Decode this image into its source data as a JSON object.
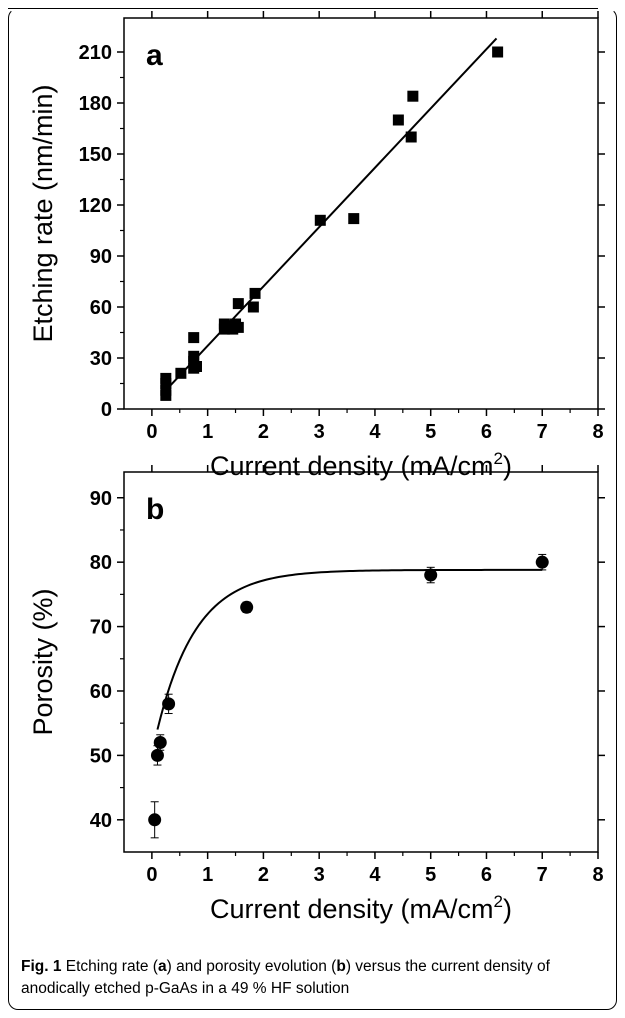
{
  "chart_data": [
    {
      "type": "scatter",
      "panel_label": "a",
      "xlabel": "Current density (mA/cm",
      "xlabel_sup": "2",
      "xlabel_close": ")",
      "ylabel": "Etching rate (nm/min)",
      "xlim": [
        -0.5,
        8
      ],
      "ylim": [
        0,
        230
      ],
      "xticks": [
        0,
        1,
        2,
        3,
        4,
        5,
        6,
        7,
        8
      ],
      "yticks": [
        0,
        30,
        60,
        90,
        120,
        150,
        180,
        210
      ],
      "marker": "square",
      "points": [
        [
          0.25,
          8
        ],
        [
          0.25,
          11
        ],
        [
          0.25,
          15
        ],
        [
          0.25,
          18
        ],
        [
          0.52,
          21
        ],
        [
          0.75,
          24
        ],
        [
          0.75,
          28
        ],
        [
          0.75,
          31
        ],
        [
          0.75,
          42
        ],
        [
          0.8,
          25
        ],
        [
          1.3,
          47
        ],
        [
          1.3,
          50
        ],
        [
          1.35,
          48
        ],
        [
          1.4,
          49
        ],
        [
          1.45,
          47
        ],
        [
          1.5,
          50
        ],
        [
          1.55,
          48
        ],
        [
          1.55,
          62
        ],
        [
          1.82,
          60
        ],
        [
          1.85,
          68
        ],
        [
          3.02,
          111
        ],
        [
          3.62,
          112
        ],
        [
          4.42,
          170
        ],
        [
          4.65,
          160
        ],
        [
          4.68,
          184
        ],
        [
          6.2,
          210
        ]
      ],
      "fit_line": {
        "x": [
          0.25,
          6.18
        ],
        "y": [
          11,
          218
        ]
      }
    },
    {
      "type": "scatter",
      "panel_label": "b",
      "xlabel": "Current density (mA/cm",
      "xlabel_sup": "2",
      "xlabel_close": ")",
      "ylabel": "Porosity (%)",
      "xlim": [
        -0.5,
        8
      ],
      "ylim": [
        35,
        94
      ],
      "xticks": [
        0,
        1,
        2,
        3,
        4,
        5,
        6,
        7,
        8
      ],
      "yticks": [
        40,
        50,
        60,
        70,
        80,
        90
      ],
      "marker": "circle",
      "points": [
        {
          "x": 0.05,
          "y": 40,
          "err": 2.8
        },
        {
          "x": 0.1,
          "y": 50,
          "err": 1.5
        },
        {
          "x": 0.15,
          "y": 52,
          "err": 1.2
        },
        {
          "x": 0.3,
          "y": 58,
          "err": 1.5
        },
        {
          "x": 1.7,
          "y": 73,
          "err": 0.8
        },
        {
          "x": 5.0,
          "y": 78,
          "err": 1.2
        },
        {
          "x": 7.0,
          "y": 80,
          "err": 1.2
        }
      ],
      "fit_curve": {
        "type": "exponential",
        "y0": 78.8,
        "a": 28.6,
        "k": 1.43,
        "x_from": 0.1,
        "x_to": 7.0
      }
    }
  ],
  "caption": {
    "label": "Fig. 1",
    "part1": " Etching rate (",
    "ref_a": "a",
    "part2": ") and porosity evolution (",
    "ref_b": "b",
    "part3": ") versus the current density of anodically etched p-GaAs in a 49 % HF solution"
  }
}
